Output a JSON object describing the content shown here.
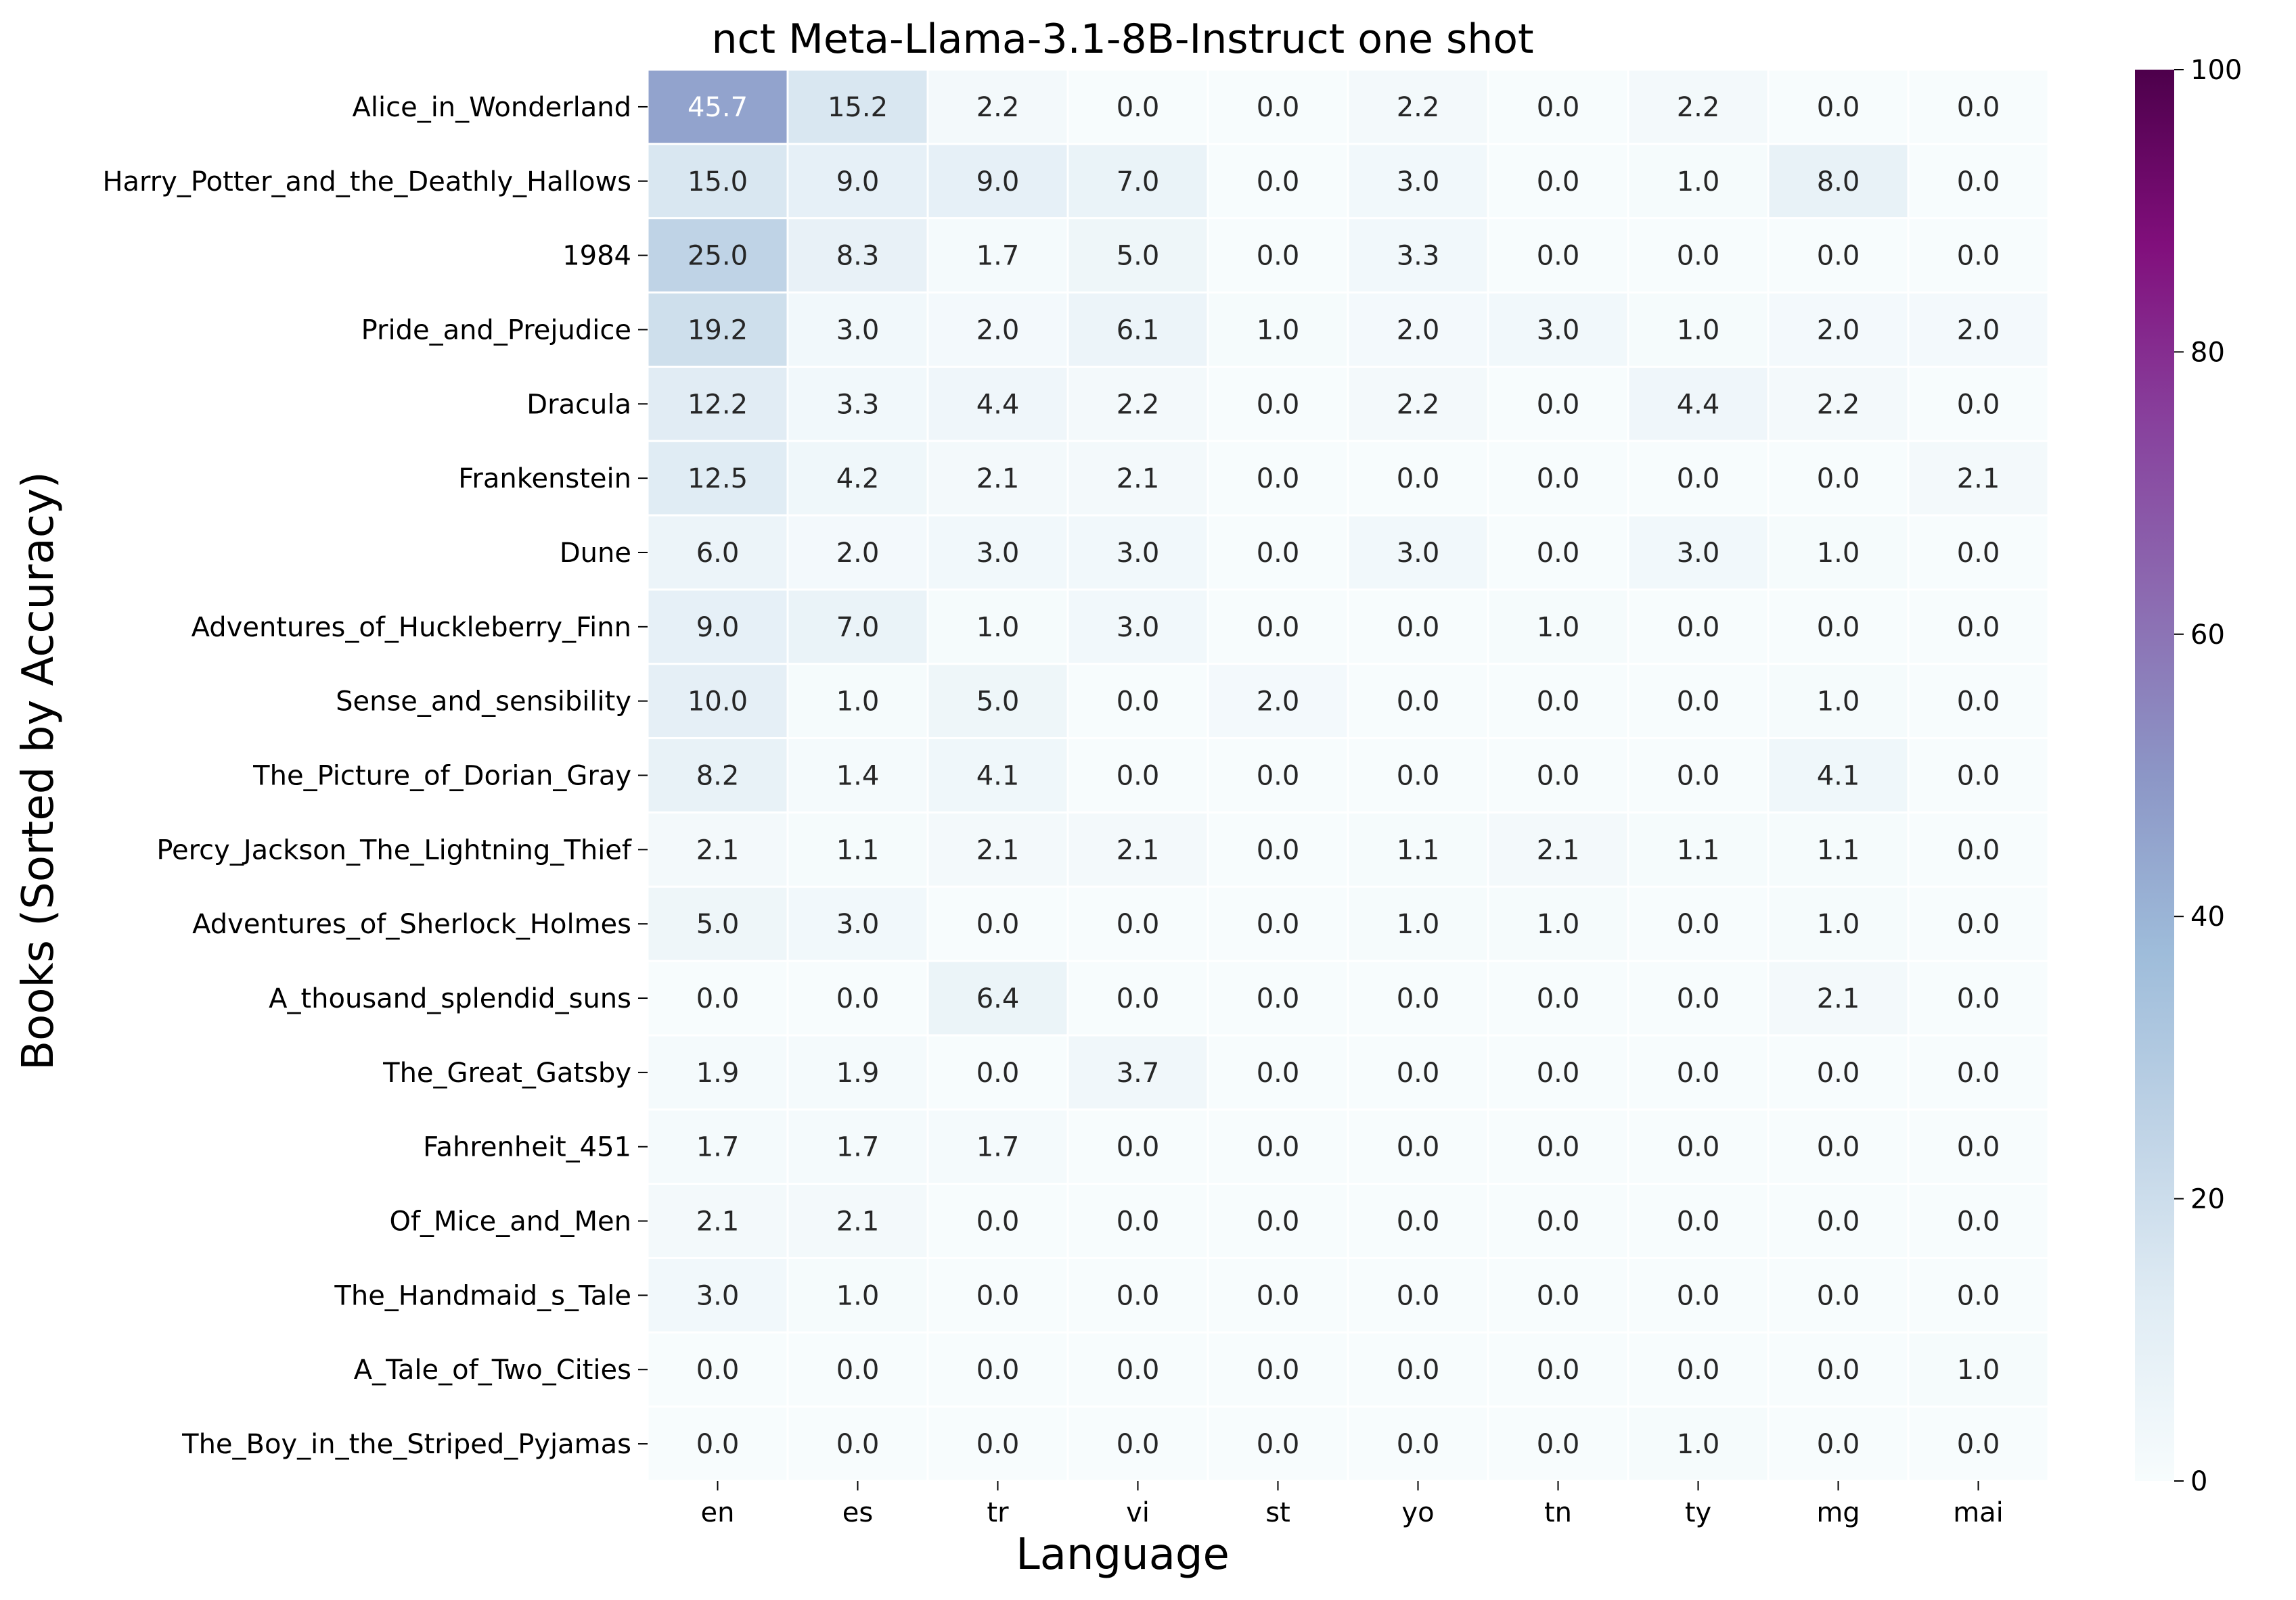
{
  "chart_data": {
    "type": "heatmap",
    "title": "nct Meta-Llama-3.1-8B-Instruct one shot",
    "xlabel": "Language",
    "ylabel": "Books (Sorted by Accuracy)",
    "x_categories": [
      "en",
      "es",
      "tr",
      "vi",
      "st",
      "yo",
      "tn",
      "ty",
      "mg",
      "mai"
    ],
    "y_categories": [
      "Alice_in_Wonderland",
      "Harry_Potter_and_the_Deathly_Hallows",
      "1984",
      "Pride_and_Prejudice",
      "Dracula",
      "Frankenstein",
      "Dune",
      "Adventures_of_Huckleberry_Finn",
      "Sense_and_sensibility",
      "The_Picture_of_Dorian_Gray",
      "Percy_Jackson_The_Lightning_Thief",
      "Adventures_of_Sherlock_Holmes",
      "A_thousand_splendid_suns",
      "The_Great_Gatsby",
      "Fahrenheit_451",
      "Of_Mice_and_Men",
      "The_Handmaid_s_Tale",
      "A_Tale_of_Two_Cities",
      "The_Boy_in_the_Striped_Pyjamas"
    ],
    "values": [
      [
        45.7,
        15.2,
        2.2,
        0.0,
        0.0,
        2.2,
        0.0,
        2.2,
        0.0,
        0.0
      ],
      [
        15.0,
        9.0,
        9.0,
        7.0,
        0.0,
        3.0,
        0.0,
        1.0,
        8.0,
        0.0
      ],
      [
        25.0,
        8.3,
        1.7,
        5.0,
        0.0,
        3.3,
        0.0,
        0.0,
        0.0,
        0.0
      ],
      [
        19.2,
        3.0,
        2.0,
        6.1,
        1.0,
        2.0,
        3.0,
        1.0,
        2.0,
        2.0
      ],
      [
        12.2,
        3.3,
        4.4,
        2.2,
        0.0,
        2.2,
        0.0,
        4.4,
        2.2,
        0.0
      ],
      [
        12.5,
        4.2,
        2.1,
        2.1,
        0.0,
        0.0,
        0.0,
        0.0,
        0.0,
        2.1
      ],
      [
        6.0,
        2.0,
        3.0,
        3.0,
        0.0,
        3.0,
        0.0,
        3.0,
        1.0,
        0.0
      ],
      [
        9.0,
        7.0,
        1.0,
        3.0,
        0.0,
        0.0,
        1.0,
        0.0,
        0.0,
        0.0
      ],
      [
        10.0,
        1.0,
        5.0,
        0.0,
        2.0,
        0.0,
        0.0,
        0.0,
        1.0,
        0.0
      ],
      [
        8.2,
        1.4,
        4.1,
        0.0,
        0.0,
        0.0,
        0.0,
        0.0,
        4.1,
        0.0
      ],
      [
        2.1,
        1.1,
        2.1,
        2.1,
        0.0,
        1.1,
        2.1,
        1.1,
        1.1,
        0.0
      ],
      [
        5.0,
        3.0,
        0.0,
        0.0,
        0.0,
        1.0,
        1.0,
        0.0,
        1.0,
        0.0
      ],
      [
        0.0,
        0.0,
        6.4,
        0.0,
        0.0,
        0.0,
        0.0,
        0.0,
        2.1,
        0.0
      ],
      [
        1.9,
        1.9,
        0.0,
        3.7,
        0.0,
        0.0,
        0.0,
        0.0,
        0.0,
        0.0
      ],
      [
        1.7,
        1.7,
        1.7,
        0.0,
        0.0,
        0.0,
        0.0,
        0.0,
        0.0,
        0.0
      ],
      [
        2.1,
        2.1,
        0.0,
        0.0,
        0.0,
        0.0,
        0.0,
        0.0,
        0.0,
        0.0
      ],
      [
        3.0,
        1.0,
        0.0,
        0.0,
        0.0,
        0.0,
        0.0,
        0.0,
        0.0,
        0.0
      ],
      [
        0.0,
        0.0,
        0.0,
        0.0,
        0.0,
        0.0,
        0.0,
        0.0,
        0.0,
        1.0
      ],
      [
        0.0,
        0.0,
        0.0,
        0.0,
        0.0,
        0.0,
        0.0,
        1.0,
        0.0,
        0.0
      ]
    ],
    "value_range": [
      0,
      100
    ],
    "colormap": "BuPu",
    "colorbar_ticks": [
      0,
      20,
      40,
      60,
      80,
      100
    ],
    "colorbar_placement": "right",
    "grid": false
  }
}
